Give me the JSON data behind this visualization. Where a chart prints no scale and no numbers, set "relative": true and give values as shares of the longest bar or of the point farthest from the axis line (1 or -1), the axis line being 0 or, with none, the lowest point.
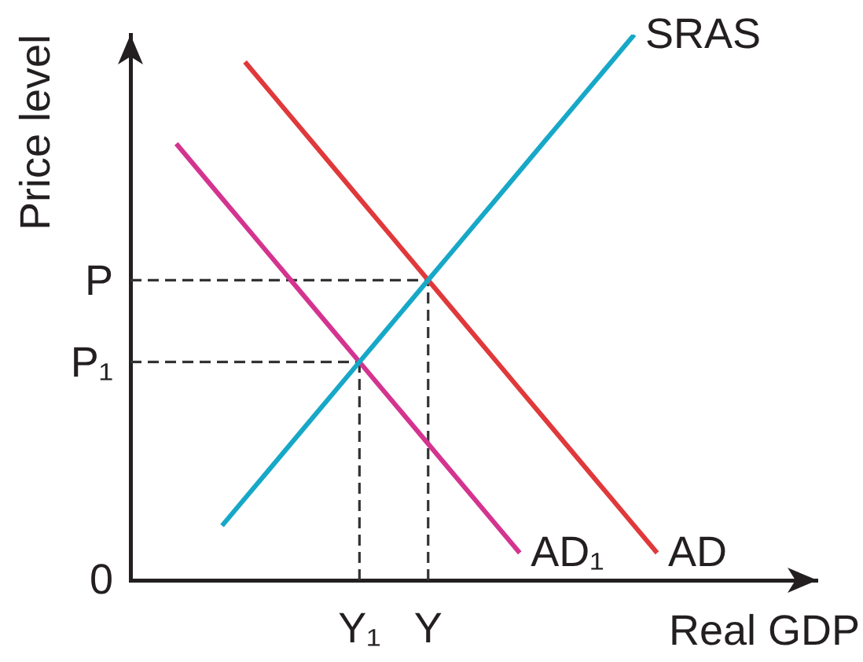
{
  "chart_data": {
    "type": "line",
    "relative": true,
    "xlabel": "Real GDP",
    "ylabel": "Price level",
    "categories": [
      null,
      null,
      null,
      null,
      null,
      null,
      null,
      null,
      null,
      null,
      "Y₁",
      null,
      null,
      "Y",
      null,
      null,
      null,
      null,
      null,
      null,
      null,
      null,
      null,
      null,
      null,
      null,
      null,
      null,
      null,
      null,
      null
    ],
    "series": [
      {
        "name": "SRAS",
        "color": "#17a8c8",
        "values": [
          null,
          null,
          null,
          null,
          0.1,
          0.15,
          0.2,
          0.25,
          0.3,
          0.35,
          0.4,
          0.45,
          0.5,
          0.55,
          0.6,
          0.65,
          0.7,
          0.75,
          0.8,
          0.85,
          0.9,
          0.95,
          1,
          null,
          null,
          null,
          null,
          null,
          null,
          null,
          null
        ]
      },
      {
        "name": "AD",
        "color": "#e0393b",
        "values": [
          null,
          null,
          null,
          null,
          null,
          0.95,
          0.9,
          0.85,
          0.8,
          0.75,
          0.7,
          0.65,
          0.6,
          0.55,
          0.5,
          0.45,
          0.4,
          0.35,
          0.3,
          0.25,
          0.2,
          0.15,
          0.1,
          0.05,
          null,
          null,
          null,
          null,
          null,
          null,
          null
        ]
      },
      {
        "name": "AD₁",
        "color": "#d4348f",
        "values": [
          null,
          null,
          0.8,
          0.75,
          0.7,
          0.65,
          0.6,
          0.55,
          0.5,
          0.45,
          0.4,
          0.35,
          0.3,
          0.25,
          0.2,
          0.15,
          0.1,
          0.05,
          null,
          null,
          null,
          null,
          null,
          null,
          null,
          null,
          null,
          null,
          null,
          null,
          null
        ]
      }
    ],
    "ref_lines": [
      {
        "axis": "y",
        "value": 0.55,
        "label": "P",
        "color": "#333333",
        "line_style": "dashed"
      },
      {
        "axis": "y",
        "value": 0.4,
        "label": "P₁",
        "color": "#333333",
        "line_style": "dashed"
      },
      {
        "axis": "x",
        "value": "Y",
        "color": "#333333",
        "line_style": "dashed"
      },
      {
        "axis": "x",
        "value": "Y₁",
        "color": "#333333",
        "line_style": "dashed"
      }
    ],
    "annotations": [
      "0"
    ]
  }
}
